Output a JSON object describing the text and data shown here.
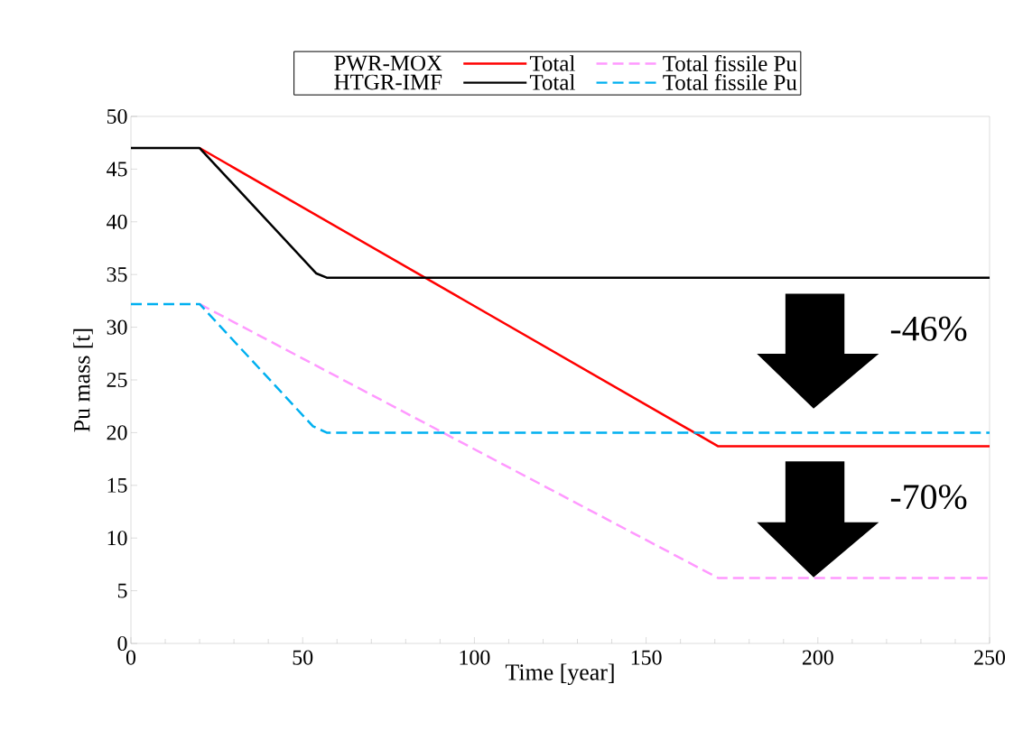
{
  "chart_data": {
    "type": "line",
    "xlabel": "Time [year]",
    "ylabel": "Pu mass [t]",
    "xlim": [
      0,
      250
    ],
    "ylim": [
      0,
      50
    ],
    "xticks": [
      0,
      50,
      100,
      150,
      200,
      250
    ],
    "yticks": [
      0,
      5,
      10,
      15,
      20,
      25,
      30,
      35,
      40,
      45,
      50
    ],
    "legend": "top",
    "marker": "none",
    "grid": false,
    "annotations": [
      "PWR-MOX",
      "HTGR-IMF",
      "-46%",
      "-70%"
    ],
    "series": [
      {
        "name": "Total",
        "color": "#ff0000",
        "line_style": "solid",
        "x": [
          20,
          171,
          250
        ],
        "values": [
          47,
          18.7,
          18.7
        ]
      },
      {
        "name": "Total fissile Pu",
        "color": "#ff99ff",
        "line_style": "dashed",
        "x": [
          20,
          171,
          250
        ],
        "values": [
          32.2,
          6.2,
          6.2
        ]
      },
      {
        "name": "Total",
        "color": "#000000",
        "line_style": "solid",
        "x": [
          0,
          20,
          54,
          57,
          250
        ],
        "values": [
          47,
          47,
          35.1,
          34.7,
          34.7
        ]
      },
      {
        "name": "Total fissile Pu",
        "color": "#00b0f0",
        "line_style": "dashed",
        "x": [
          0,
          20,
          53,
          57,
          250
        ],
        "values": [
          32.2,
          32.2,
          20.6,
          20,
          20
        ]
      }
    ]
  }
}
